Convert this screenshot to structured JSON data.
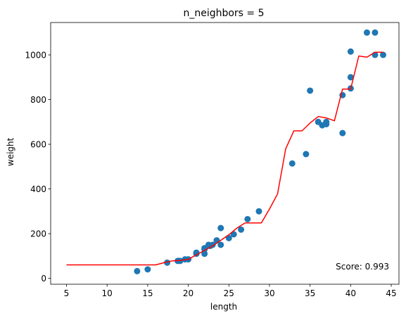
{
  "chart_data": {
    "type": "scatter",
    "title": "n_neighbors = 5",
    "xlabel": "length",
    "ylabel": "weight",
    "xlim": [
      3.05,
      45.95
    ],
    "ylim": [
      -26.5,
      1145
    ],
    "xticks": [
      5,
      10,
      15,
      20,
      25,
      30,
      35,
      40,
      45
    ],
    "yticks": [
      0,
      200,
      400,
      600,
      800,
      1000
    ],
    "grid": false,
    "legend": "none",
    "annotation": "Score: 0.993",
    "colors": {
      "scatter": "#1f77b4",
      "line": "#ff0000",
      "axes": "#000000"
    },
    "series": [
      {
        "type": "scatter",
        "points": [
          [
            13.7,
            32
          ],
          [
            15.0,
            40
          ],
          [
            17.4,
            70
          ],
          [
            18.7,
            78
          ],
          [
            19.0,
            78
          ],
          [
            19.6,
            85
          ],
          [
            20.0,
            85
          ],
          [
            21.0,
            110
          ],
          [
            21.0,
            115
          ],
          [
            22.0,
            110
          ],
          [
            22.0,
            130
          ],
          [
            22.0,
            135
          ],
          [
            22.5,
            150
          ],
          [
            22.7,
            145
          ],
          [
            23.0,
            150
          ],
          [
            23.5,
            170
          ],
          [
            24.0,
            150
          ],
          [
            24.0,
            225
          ],
          [
            25.0,
            180
          ],
          [
            25.6,
            197
          ],
          [
            26.5,
            218
          ],
          [
            27.3,
            265
          ],
          [
            28.7,
            300
          ],
          [
            32.8,
            514
          ],
          [
            34.5,
            556
          ],
          [
            35.0,
            840
          ],
          [
            36.0,
            700
          ],
          [
            36.5,
            685
          ],
          [
            37.0,
            690
          ],
          [
            37.0,
            700
          ],
          [
            39.0,
            650
          ],
          [
            39.0,
            820
          ],
          [
            40.0,
            900
          ],
          [
            40.0,
            850
          ],
          [
            40.0,
            1015
          ],
          [
            42.0,
            1100
          ],
          [
            43.0,
            1100
          ],
          [
            43.0,
            1000
          ],
          [
            44.0,
            1000
          ]
        ]
      },
      {
        "type": "line",
        "points": [
          [
            5,
            60
          ],
          [
            15.6,
            60
          ],
          [
            16,
            60
          ],
          [
            17,
            70
          ],
          [
            18,
            78
          ],
          [
            19,
            80
          ],
          [
            20,
            85
          ],
          [
            21,
            105
          ],
          [
            22,
            125
          ],
          [
            23,
            145
          ],
          [
            24,
            170
          ],
          [
            25,
            195
          ],
          [
            26,
            225
          ],
          [
            27,
            248
          ],
          [
            28,
            248
          ],
          [
            29,
            248
          ],
          [
            30,
            310
          ],
          [
            31,
            378
          ],
          [
            32,
            580
          ],
          [
            33,
            660
          ],
          [
            34,
            660
          ],
          [
            35,
            695
          ],
          [
            36,
            724
          ],
          [
            37,
            718
          ],
          [
            38,
            705
          ],
          [
            39,
            847
          ],
          [
            40,
            847
          ],
          [
            41,
            995
          ],
          [
            42,
            990
          ],
          [
            43,
            1012
          ],
          [
            44,
            1012
          ]
        ]
      }
    ]
  }
}
